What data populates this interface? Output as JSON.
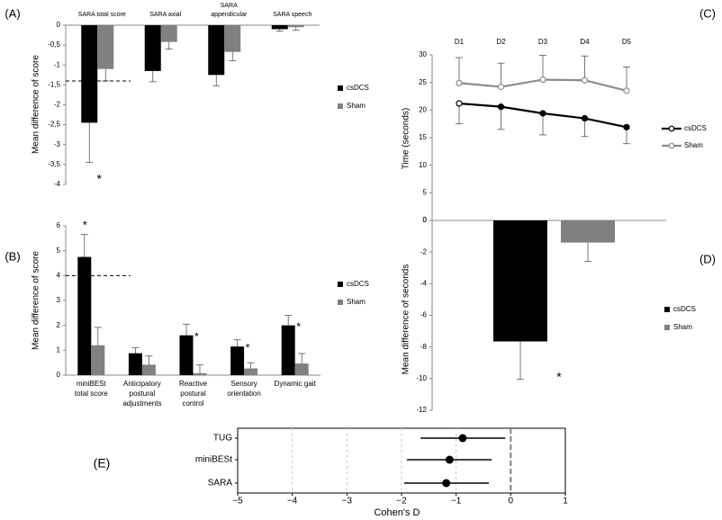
{
  "colors": {
    "csdcs": "#000000",
    "sham": "#808080",
    "ci_line": "#000000",
    "grid": "#c8c8c8",
    "zero_line": "#7f7f7f"
  },
  "chart_data": [
    {
      "panel": "(A)",
      "type": "bar",
      "categories": [
        "SARA total score",
        "SARA axial",
        "SARA appendicular",
        "SARA speech"
      ],
      "series": [
        {
          "name": "csDCS",
          "values": [
            -2.45,
            -1.15,
            -1.25,
            -0.1
          ],
          "errors": [
            1.0,
            0.27,
            0.27,
            0.05
          ]
        },
        {
          "name": "Sham",
          "values": [
            -1.1,
            -0.42,
            -0.67,
            -0.05
          ],
          "errors": [
            0.3,
            0.18,
            0.22,
            0.08
          ]
        }
      ],
      "ylabel": "Mean difference of score",
      "ylim": [
        -4,
        0
      ],
      "yticks": [
        "0",
        "-0,5",
        "-1",
        "-1,5",
        "-2",
        "-2,5",
        "-3",
        "-3,5",
        "-4"
      ],
      "threshold": -1.4,
      "annotations": [
        {
          "text": "*",
          "category_index": 0
        }
      ],
      "legend": "right"
    },
    {
      "panel": "(B)",
      "type": "bar",
      "categories": [
        "miniBESt total score",
        "Anticipatory postural adjustments",
        "Reactive postural control",
        "Sensory orientation",
        "Dynamic gait"
      ],
      "series": [
        {
          "name": "csDCS",
          "values": [
            4.75,
            0.88,
            1.6,
            1.15,
            2.0
          ],
          "errors": [
            0.9,
            0.22,
            0.45,
            0.27,
            0.4
          ]
        },
        {
          "name": "Sham",
          "values": [
            1.2,
            0.42,
            0.08,
            0.27,
            0.47
          ],
          "errors": [
            0.72,
            0.35,
            0.33,
            0.23,
            0.4
          ]
        }
      ],
      "ylabel": "Mean difference of score",
      "ylim": [
        0,
        6
      ],
      "yticks": [
        "0",
        "1",
        "2",
        "3",
        "4",
        "5",
        "6"
      ],
      "threshold": 4,
      "annotations": [
        {
          "text": "*",
          "category_index": 0
        },
        {
          "text": "*",
          "category_index": 2
        },
        {
          "text": "*",
          "category_index": 3
        },
        {
          "text": "*",
          "category_index": 4
        }
      ],
      "legend": "right"
    },
    {
      "panel": "(C)",
      "type": "line",
      "x": [
        "D1",
        "D2",
        "D3",
        "D4",
        "D5"
      ],
      "series": [
        {
          "name": "csDCS",
          "values": [
            21.2,
            20.6,
            19.4,
            18.5,
            16.9
          ],
          "errors": [
            3.7,
            4.1,
            3.9,
            3.3,
            3.0
          ]
        },
        {
          "name": "Sham",
          "values": [
            24.9,
            24.2,
            25.5,
            25.4,
            23.5
          ],
          "errors": [
            4.6,
            4.3,
            4.4,
            4.4,
            4.3
          ]
        }
      ],
      "ylabel": "Time (seconds)",
      "ylim": [
        0,
        30
      ],
      "yticks": [
        "0",
        "5",
        "10",
        "15",
        "20",
        "25",
        "30"
      ],
      "legend": "right"
    },
    {
      "panel": "(D)",
      "type": "bar",
      "categories": [
        ""
      ],
      "series": [
        {
          "name": "csDCS",
          "values": [
            -7.65
          ],
          "errors": [
            2.4
          ]
        },
        {
          "name": "Sham",
          "values": [
            -1.4
          ],
          "errors": [
            1.2
          ]
        }
      ],
      "ylabel": "Mean difference of seconds",
      "ylim": [
        -12,
        0
      ],
      "yticks": [
        "0",
        "-2",
        "-4",
        "-6",
        "-8",
        "-10",
        "-12"
      ],
      "annotations": [
        {
          "text": "*",
          "category_index": 0
        }
      ],
      "legend": "right"
    },
    {
      "panel": "(E)",
      "type": "forest",
      "categories": [
        "TUG",
        "miniBESt",
        "SARA"
      ],
      "values": [
        -0.88,
        -1.12,
        -1.18
      ],
      "ci": [
        [
          -1.65,
          -0.1
        ],
        [
          -1.9,
          -0.35
        ],
        [
          -1.95,
          -0.4
        ]
      ],
      "xlabel": "Cohen's D",
      "xlim": [
        -5,
        1
      ],
      "xticks": [
        "−5",
        "−4",
        "−3",
        "−2",
        "−1",
        "0",
        "1"
      ],
      "grid": true
    }
  ]
}
